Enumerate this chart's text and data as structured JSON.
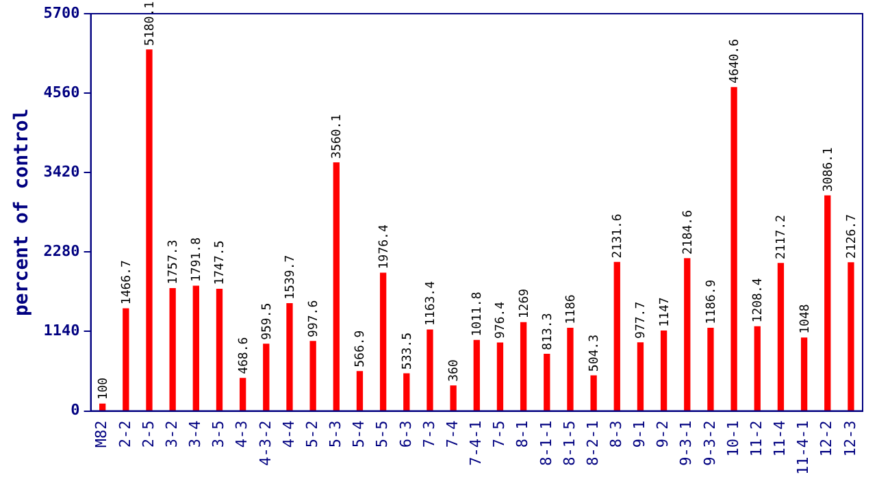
{
  "chart_data": {
    "type": "bar",
    "ylabel": "percent of control",
    "categories": [
      "M82",
      "2-2",
      "2-5",
      "3-2",
      "3-4",
      "3-5",
      "4-3",
      "4-3-2",
      "4-4",
      "5-2",
      "5-3",
      "5-4",
      "5-5",
      "6-3",
      "7-3",
      "7-4",
      "7-4-1",
      "7-5",
      "8-1",
      "8-1-1",
      "8-1-5",
      "8-2-1",
      "8-3",
      "9-1",
      "9-2",
      "9-3-1",
      "9-3-2",
      "10-1",
      "11-2",
      "11-4",
      "11-4-1",
      "12-2",
      "12-3"
    ],
    "values": [
      100,
      1466.7,
      5180.1,
      1757.3,
      1791.8,
      1747.5,
      468.6,
      959.5,
      1539.7,
      997.6,
      3560.1,
      566.9,
      1976.4,
      533.5,
      1163.4,
      360,
      1011.8,
      976.4,
      1269,
      813.3,
      1186,
      504.3,
      2131.6,
      977.7,
      1147,
      2184.6,
      1186.9,
      4640.6,
      1208.4,
      2117.2,
      1048,
      3086.1,
      2126.7
    ],
    "color": "#ff0000",
    "ylim": [
      0,
      5700
    ],
    "yticks": [
      0,
      1140,
      2280,
      3420,
      4560,
      5700
    ],
    "grid": false,
    "legend": false,
    "data_labels": true
  }
}
